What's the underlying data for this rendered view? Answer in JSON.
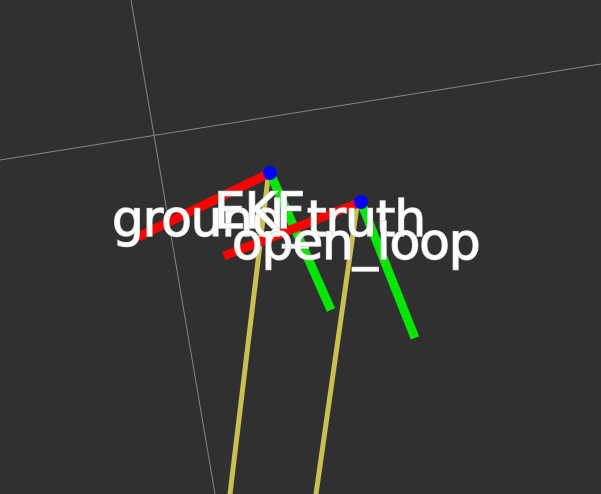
{
  "scene": {
    "background_color": "#303030",
    "grid_color": "#9a9a9a",
    "axis_colors": {
      "x_axis": "#ff0000",
      "y_axis": "#00e600",
      "link": "#c8c050",
      "joint": "#0000ff"
    },
    "frames": [
      {
        "id": "ground_truth",
        "label": "ground_truth"
      },
      {
        "id": "EKF",
        "label": "EKF"
      },
      {
        "id": "open_loop",
        "label": "open_loop"
      }
    ]
  }
}
